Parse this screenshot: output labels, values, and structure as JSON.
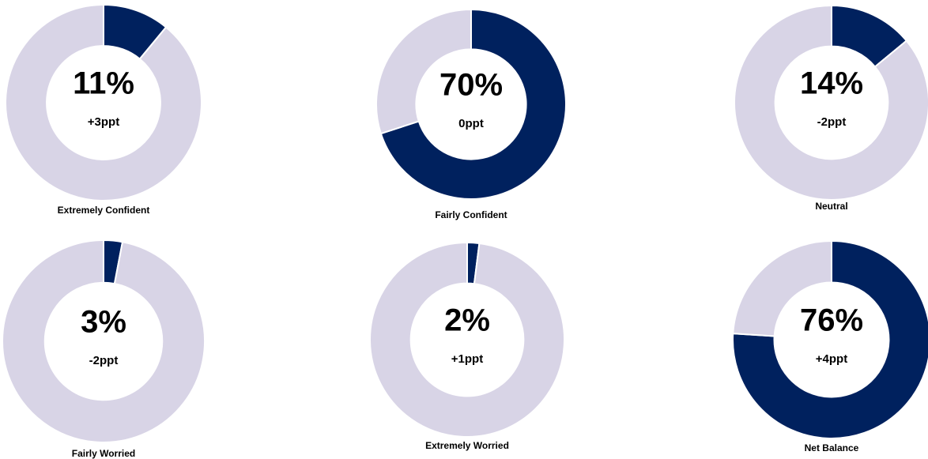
{
  "chart_data": [
    {
      "type": "pie",
      "title": "Extremely Confident",
      "values": [
        11,
        89
      ],
      "value_labels": [
        "11%",
        null
      ],
      "colors": [
        "#00215e",
        "#d8d4e6"
      ],
      "annotation": "+3ppt"
    },
    {
      "type": "pie",
      "title": "Fairly Confident",
      "values": [
        70,
        30
      ],
      "value_labels": [
        "70%",
        null
      ],
      "colors": [
        "#00215e",
        "#d8d4e6"
      ],
      "annotation": "0ppt"
    },
    {
      "type": "pie",
      "title": "Neutral",
      "values": [
        14,
        86
      ],
      "value_labels": [
        "14%",
        null
      ],
      "colors": [
        "#00215e",
        "#d8d4e6"
      ],
      "annotation": "-2ppt"
    },
    {
      "type": "pie",
      "title": "Fairly Worried",
      "values": [
        3,
        97
      ],
      "value_labels": [
        "3%",
        null
      ],
      "colors": [
        "#00215e",
        "#d8d4e6"
      ],
      "annotation": "-2ppt"
    },
    {
      "type": "pie",
      "title": "Extremely Worried",
      "values": [
        2,
        98
      ],
      "value_labels": [
        "2%",
        null
      ],
      "colors": [
        "#00215e",
        "#d8d4e6"
      ],
      "annotation": "+1ppt"
    },
    {
      "type": "pie",
      "title": "Net Balance",
      "values": [
        76,
        24
      ],
      "value_labels": [
        "76%",
        null
      ],
      "colors": [
        "#00215e",
        "#d8d4e6"
      ],
      "annotation": "+4ppt"
    }
  ]
}
